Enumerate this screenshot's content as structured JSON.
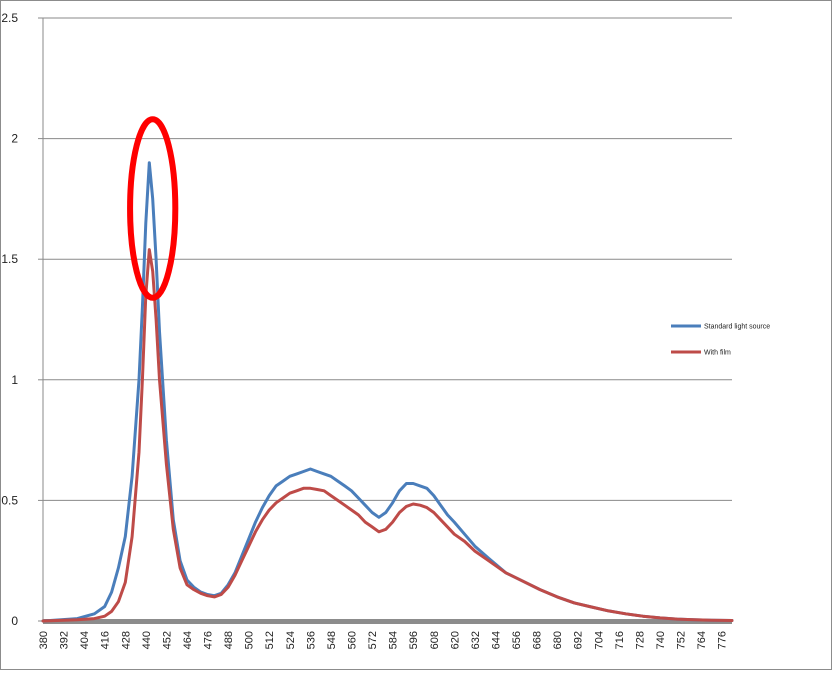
{
  "chart_data": {
    "type": "line",
    "title": "",
    "xlabel": "",
    "ylabel": "",
    "xlim": [
      380,
      782
    ],
    "ylim": [
      0,
      2.5
    ],
    "grid": "horizontal",
    "legend_placement": "right",
    "y_ticks": [
      "0",
      "0.5",
      "1",
      "1.5",
      "2",
      "2.5"
    ],
    "x_ticks": [
      "380",
      "392",
      "404",
      "416",
      "428",
      "440",
      "452",
      "464",
      "476",
      "488",
      "500",
      "512",
      "524",
      "536",
      "548",
      "560",
      "572",
      "584",
      "596",
      "608",
      "620",
      "632",
      "644",
      "656",
      "668",
      "680",
      "692",
      "704",
      "716",
      "728",
      "740",
      "752",
      "764",
      "776"
    ],
    "series": [
      {
        "name": "Standard light source",
        "color": "#4a7ebb",
        "x": [
          380,
          400,
          410,
          416,
          420,
          424,
          428,
          432,
          436,
          438,
          440,
          442,
          444,
          446,
          448,
          452,
          456,
          460,
          464,
          468,
          472,
          476,
          480,
          484,
          488,
          492,
          496,
          500,
          504,
          508,
          512,
          516,
          520,
          524,
          528,
          532,
          536,
          540,
          544,
          548,
          552,
          556,
          560,
          564,
          568,
          572,
          576,
          580,
          584,
          588,
          592,
          596,
          600,
          604,
          608,
          612,
          616,
          620,
          626,
          632,
          640,
          650,
          660,
          670,
          680,
          690,
          700,
          710,
          720,
          730,
          740,
          750,
          760,
          770,
          782
        ],
        "y": [
          0.0,
          0.01,
          0.03,
          0.06,
          0.12,
          0.22,
          0.35,
          0.6,
          1.0,
          1.3,
          1.65,
          1.9,
          1.75,
          1.5,
          1.2,
          0.75,
          0.42,
          0.25,
          0.17,
          0.14,
          0.12,
          0.11,
          0.105,
          0.115,
          0.15,
          0.2,
          0.27,
          0.34,
          0.41,
          0.47,
          0.52,
          0.56,
          0.58,
          0.6,
          0.61,
          0.62,
          0.63,
          0.62,
          0.61,
          0.6,
          0.58,
          0.56,
          0.54,
          0.51,
          0.48,
          0.45,
          0.43,
          0.45,
          0.49,
          0.54,
          0.57,
          0.57,
          0.56,
          0.55,
          0.52,
          0.48,
          0.44,
          0.41,
          0.36,
          0.31,
          0.26,
          0.2,
          0.165,
          0.13,
          0.1,
          0.075,
          0.058,
          0.042,
          0.03,
          0.02,
          0.013,
          0.008,
          0.005,
          0.003,
          0.002
        ]
      },
      {
        "name": "With film",
        "color": "#be4b48",
        "x": [
          380,
          400,
          410,
          416,
          420,
          424,
          428,
          432,
          436,
          438,
          440,
          442,
          444,
          446,
          448,
          452,
          456,
          460,
          464,
          468,
          472,
          476,
          480,
          484,
          488,
          492,
          496,
          500,
          504,
          508,
          512,
          516,
          520,
          524,
          528,
          532,
          536,
          540,
          544,
          548,
          552,
          556,
          560,
          564,
          568,
          572,
          576,
          580,
          584,
          588,
          592,
          596,
          600,
          604,
          608,
          612,
          616,
          620,
          626,
          632,
          640,
          650,
          660,
          670,
          680,
          690,
          700,
          710,
          720,
          730,
          740,
          750,
          760,
          770,
          782
        ],
        "y": [
          0.0,
          0.005,
          0.01,
          0.02,
          0.04,
          0.08,
          0.16,
          0.35,
          0.7,
          1.0,
          1.35,
          1.54,
          1.45,
          1.25,
          1.0,
          0.65,
          0.38,
          0.22,
          0.15,
          0.13,
          0.115,
          0.105,
          0.1,
          0.11,
          0.14,
          0.19,
          0.25,
          0.31,
          0.37,
          0.42,
          0.46,
          0.49,
          0.51,
          0.53,
          0.54,
          0.55,
          0.55,
          0.545,
          0.54,
          0.52,
          0.5,
          0.48,
          0.46,
          0.44,
          0.41,
          0.39,
          0.37,
          0.38,
          0.41,
          0.45,
          0.475,
          0.485,
          0.48,
          0.47,
          0.45,
          0.42,
          0.39,
          0.36,
          0.33,
          0.29,
          0.25,
          0.2,
          0.165,
          0.13,
          0.1,
          0.075,
          0.058,
          0.042,
          0.03,
          0.02,
          0.013,
          0.008,
          0.005,
          0.003,
          0.002
        ]
      }
    ],
    "annotation": {
      "type": "circle",
      "color": "#ff0000",
      "center_x": 444,
      "center_y": 1.71,
      "radius_x": 13.2,
      "radius_y": 0.37
    }
  }
}
